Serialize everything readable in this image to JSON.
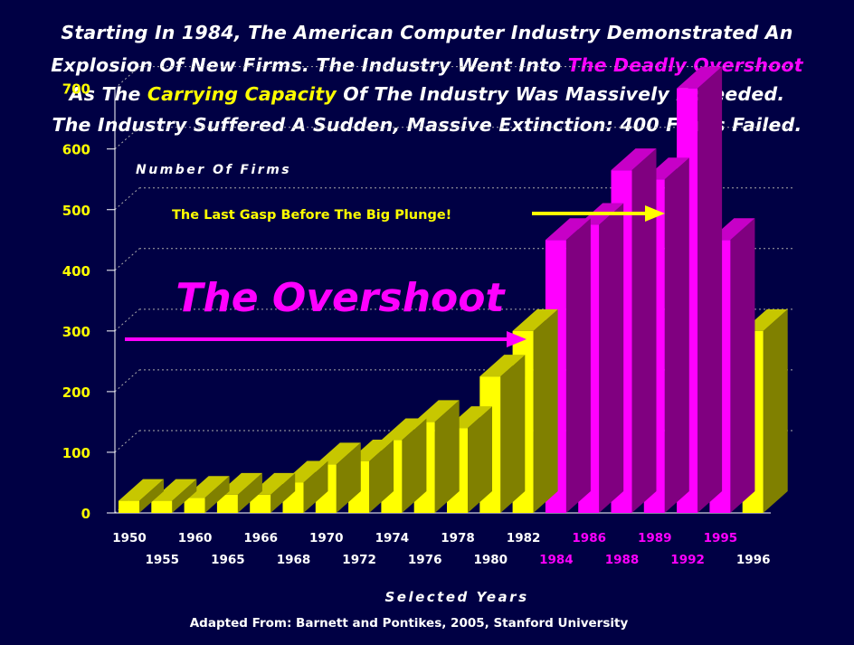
{
  "headline": {
    "line1": "Starting In 1984, The American Computer Industry Demonstrated An",
    "line2_a": "Explosion Of New Firms. The Industry Went Into ",
    "line2_b": "The Deadly Overshoot",
    "line3_a": "As The ",
    "line3_b": "Carrying Capacity",
    "line3_c": " Of The Industry Was Massively Exceeded.",
    "line4": "The Industry Suffered A Sudden, Massive Extinction: 400 Firms Failed."
  },
  "source": "Adapted From: Barnett and Pontikes, 2005, Stanford University",
  "colors": {
    "background": "#000044",
    "yellow": "#ffff00",
    "magenta": "#ff00ff",
    "white": "#ffffff"
  },
  "chart_data": {
    "type": "bar",
    "ylabel": "Number Of Firms",
    "xlabel": "Selected Years",
    "ylim": [
      0,
      700
    ],
    "yticks": [
      0,
      100,
      200,
      300,
      400,
      500,
      600,
      700
    ],
    "grid": true,
    "categories": [
      "1950",
      "1955",
      "1960",
      "1965",
      "1966",
      "1968",
      "1970",
      "1972",
      "1974",
      "1976",
      "1978",
      "1980",
      "1982",
      "1984",
      "1986",
      "1988",
      "1989",
      "1992",
      "1995",
      "1996"
    ],
    "values": [
      20,
      20,
      25,
      30,
      30,
      50,
      80,
      85,
      120,
      150,
      140,
      225,
      300,
      450,
      475,
      565,
      550,
      700,
      450,
      300
    ],
    "highlight": [
      false,
      false,
      false,
      false,
      false,
      false,
      false,
      false,
      false,
      false,
      false,
      false,
      false,
      true,
      true,
      true,
      true,
      true,
      true,
      false
    ],
    "annotations": {
      "overshoot": "The Overshoot",
      "last_gasp": "The Last Gasp Before The Big Plunge!"
    }
  }
}
